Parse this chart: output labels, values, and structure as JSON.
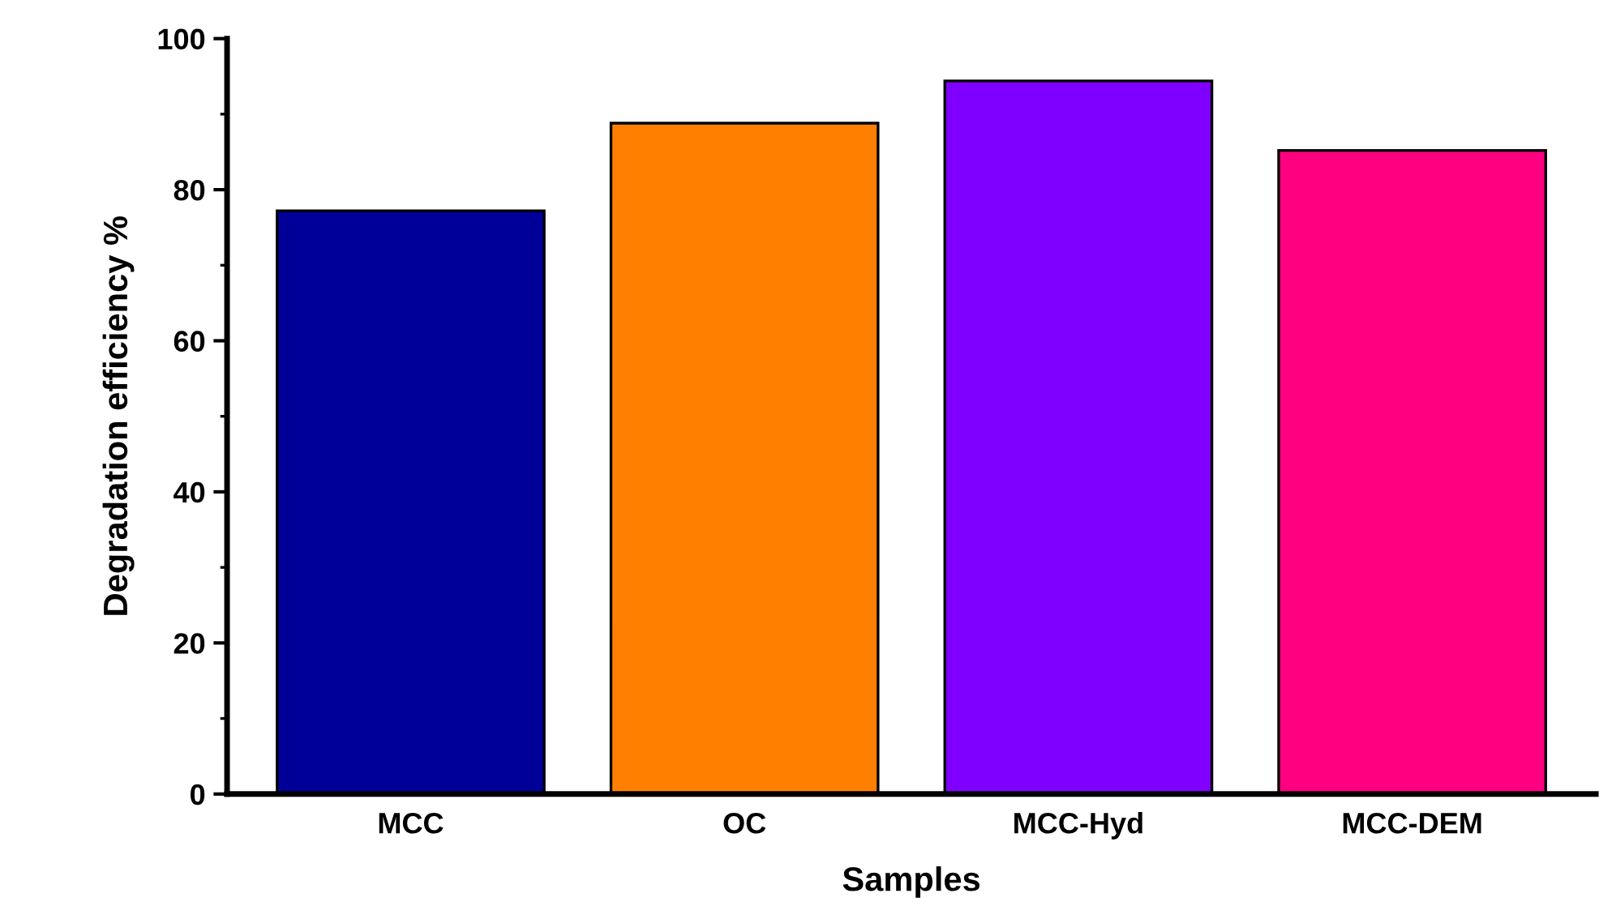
{
  "chart_data": {
    "type": "bar",
    "xlabel": "Samples",
    "ylabel": "Degradation efficiency %",
    "categories": [
      "MCC",
      "OC",
      "MCC-Hyd",
      "MCC-DEM"
    ],
    "values": [
      77.2,
      88.8,
      94.4,
      85.2
    ],
    "colors": [
      "#000099",
      "#ff8000",
      "#8000ff",
      "#ff0080"
    ],
    "ylim": [
      0,
      100
    ],
    "yticks": [
      0,
      {
        "value": 10,
        "label": null
      },
      20,
      {
        "value": 30,
        "label": null
      },
      40,
      {
        "value": 50,
        "label": null
      },
      60,
      {
        "value": 70,
        "label": null
      },
      80,
      {
        "value": 90,
        "label": null
      },
      100
    ],
    "grid": false,
    "legend": false
  }
}
